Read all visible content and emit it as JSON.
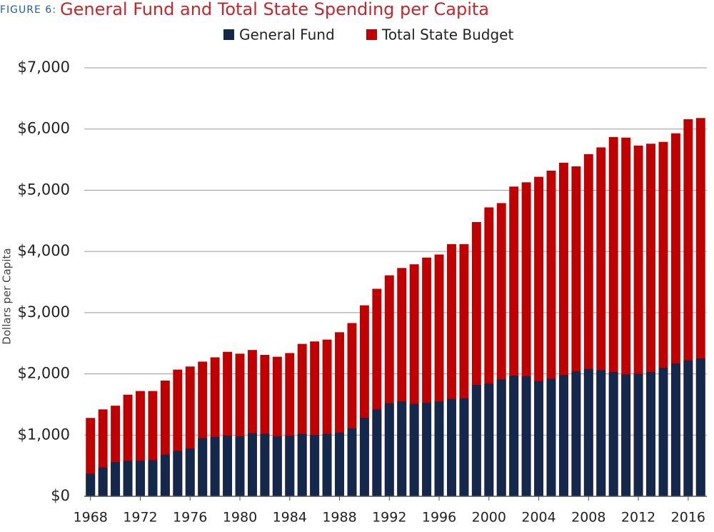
{
  "chart_data": {
    "type": "bar",
    "figure_label": "FIGURE 6:",
    "title": "General Fund and Total State Spending per Capita",
    "y_label": "Dollars per Capita",
    "categories": [
      "1968",
      null,
      null,
      null,
      "1972",
      null,
      null,
      null,
      "1976",
      null,
      null,
      null,
      "1980",
      null,
      null,
      null,
      "1984",
      null,
      null,
      null,
      "1988",
      null,
      null,
      null,
      "1992",
      null,
      null,
      null,
      "1996",
      null,
      null,
      null,
      "2000",
      null,
      null,
      null,
      "2004",
      null,
      null,
      null,
      "2008",
      null,
      null,
      null,
      "2012",
      null,
      null,
      null,
      "2016",
      null
    ],
    "series": [
      {
        "name": "General Fund",
        "color": "#14284b",
        "values": [
          370,
          470,
          560,
          580,
          580,
          590,
          680,
          740,
          780,
          950,
          970,
          990,
          980,
          1030,
          1020,
          980,
          990,
          1020,
          1000,
          1020,
          1040,
          1110,
          1280,
          1420,
          1520,
          1550,
          1510,
          1530,
          1550,
          1590,
          1600,
          1820,
          1840,
          1910,
          1970,
          1960,
          1880,
          1920,
          1980,
          2040,
          2080,
          2060,
          2030,
          1990,
          2000,
          2030,
          2100,
          2170,
          2220,
          2250
        ]
      },
      {
        "name": "Total State Budget",
        "color": "#c00000",
        "values": [
          1280,
          1420,
          1480,
          1660,
          1720,
          1720,
          1890,
          2070,
          2120,
          2200,
          2270,
          2360,
          2330,
          2390,
          2310,
          2280,
          2340,
          2490,
          2530,
          2560,
          2680,
          2830,
          3120,
          3390,
          3610,
          3730,
          3790,
          3900,
          3950,
          4120,
          4120,
          4480,
          4720,
          4790,
          5060,
          5130,
          5220,
          5320,
          5450,
          5390,
          5590,
          5700,
          5870,
          5860,
          5730,
          5760,
          5790,
          5930,
          6160,
          6180
        ]
      }
    ],
    "ylim": [
      0,
      7000
    ],
    "yticks": [
      {
        "value": 0,
        "label": "$0"
      },
      {
        "value": 1000,
        "label": "$1,000"
      },
      {
        "value": 2000,
        "label": "$2,000"
      },
      {
        "value": 3000,
        "label": "$3,000"
      },
      {
        "value": 4000,
        "label": "$4,000"
      },
      {
        "value": 5000,
        "label": "$5,000"
      },
      {
        "value": 6000,
        "label": "$6,000"
      },
      {
        "value": 7000,
        "label": "$7,000"
      }
    ],
    "grid": true
  }
}
